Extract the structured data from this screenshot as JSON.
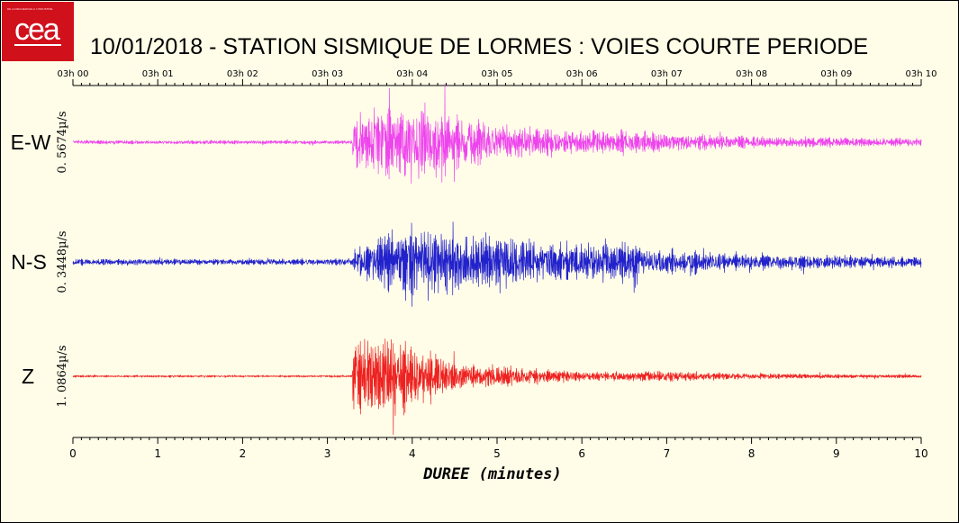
{
  "logo": {
    "text": "cea",
    "tagline": "DE LA RECHERCHE À L'INDUSTRIE"
  },
  "title": "10/01/2018  -  STATION SISMIQUE DE LORMES : VOIES COURTE PERIODE",
  "colors": {
    "background": "#fffde8",
    "ew": "#ee44ee",
    "ns": "#2222cc",
    "z": "#ee2222",
    "logo": "#d0111c"
  },
  "chart_data": {
    "type": "line",
    "title": "10/01/2018  -  STATION SISMIQUE DE LORMES : VOIES COURTE PERIODE",
    "xlabel": "DUREE (minutes)",
    "xlim": [
      0,
      10
    ],
    "x_ticks": [
      "0",
      "1",
      "2",
      "3",
      "4",
      "5",
      "6",
      "7",
      "8",
      "9",
      "10"
    ],
    "top_time_ticks": [
      "03h 00",
      "03h 01",
      "03h 02",
      "03h 03",
      "03h 04",
      "03h 05",
      "03h 06",
      "03h 07",
      "03h 08",
      "03h 09",
      "03h 10"
    ],
    "grid": false,
    "series": [
      {
        "name": "E-W",
        "scale": "0. 5674µ/s",
        "color": "#ee44ee",
        "envelope": {
          "x": [
            0,
            3.0,
            3.29,
            3.3,
            3.6,
            4.0,
            4.5,
            5.0,
            5.5,
            6.0,
            6.5,
            7.0,
            8.0,
            9.0,
            10.0
          ],
          "amplitude": [
            0.05,
            0.05,
            0.05,
            0.65,
            0.85,
            1.0,
            0.75,
            0.5,
            0.35,
            0.3,
            0.28,
            0.22,
            0.15,
            0.12,
            0.1
          ]
        }
      },
      {
        "name": "N-S",
        "scale": "0. 3448µ/s",
        "color": "#2222cc",
        "envelope": {
          "x": [
            0,
            3.0,
            3.29,
            3.3,
            3.6,
            4.0,
            4.5,
            5.0,
            5.5,
            6.0,
            6.5,
            7.0,
            8.0,
            9.0,
            10.0
          ],
          "amplitude": [
            0.08,
            0.08,
            0.08,
            0.3,
            0.55,
            1.0,
            0.75,
            0.65,
            0.55,
            0.45,
            0.45,
            0.3,
            0.2,
            0.16,
            0.13
          ]
        }
      },
      {
        "name": "Z",
        "scale": "1. 0864µ/s",
        "color": "#ee2222",
        "envelope": {
          "x": [
            0,
            3.0,
            3.29,
            3.3,
            3.6,
            3.8,
            4.2,
            4.5,
            5.0,
            5.5,
            5.7,
            6.0,
            7.0,
            8.0,
            9.0,
            10.0
          ],
          "amplitude": [
            0.02,
            0.02,
            0.02,
            0.85,
            1.0,
            1.0,
            0.6,
            0.35,
            0.25,
            0.18,
            0.14,
            0.12,
            0.13,
            0.08,
            0.05,
            0.04
          ]
        }
      }
    ]
  }
}
